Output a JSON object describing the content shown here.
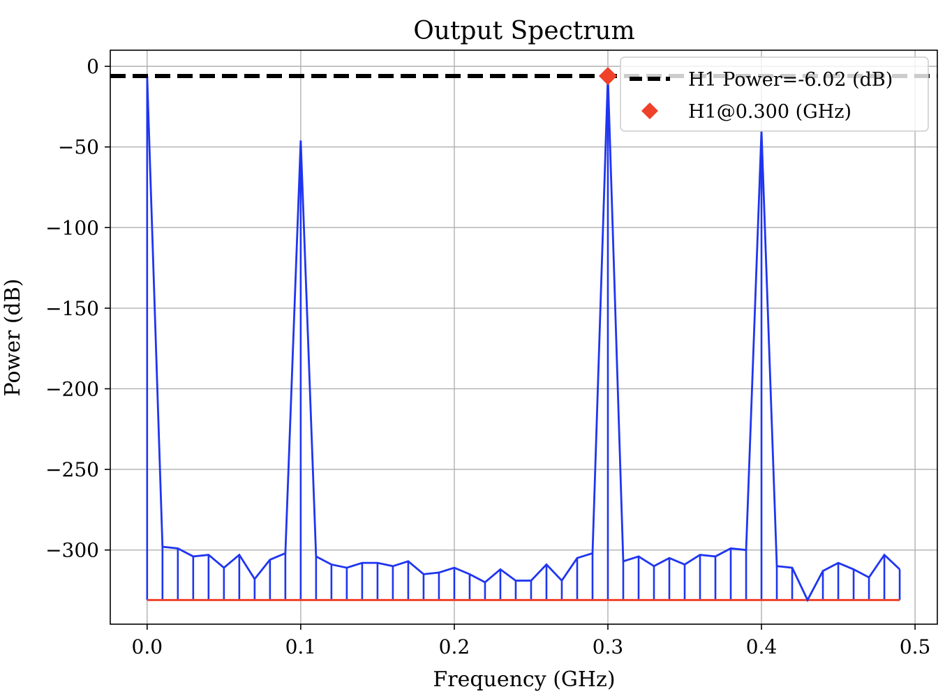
{
  "chart_data": {
    "type": "line",
    "title": "Output Spectrum",
    "xlabel": "Frequency (GHz)",
    "ylabel": "Power (dB)",
    "xlim": [
      -0.024,
      0.5145
    ],
    "ylim": [
      -346,
      10
    ],
    "xticks": [
      0.0,
      0.1,
      0.2,
      0.3,
      0.4,
      0.5
    ],
    "xtick_labels": [
      "0.0",
      "0.1",
      "0.2",
      "0.3",
      "0.4",
      "0.5"
    ],
    "yticks": [
      0,
      -50,
      -100,
      -150,
      -200,
      -250,
      -300
    ],
    "ytick_labels": [
      "0",
      "−50",
      "−100",
      "−150",
      "−200",
      "−250",
      "−300"
    ],
    "grid": true,
    "legend_position": "top-right",
    "stem_baseline": -331,
    "spectrum": {
      "color": "#1f35f0",
      "x": [
        0.0,
        0.01,
        0.02,
        0.03,
        0.04,
        0.05,
        0.06,
        0.07,
        0.08,
        0.09,
        0.1,
        0.11,
        0.12,
        0.13,
        0.14,
        0.15,
        0.16,
        0.17,
        0.18,
        0.19,
        0.2,
        0.21,
        0.22,
        0.23,
        0.24,
        0.25,
        0.26,
        0.27,
        0.28,
        0.29,
        0.3,
        0.31,
        0.32,
        0.33,
        0.34,
        0.35,
        0.36,
        0.37,
        0.38,
        0.39,
        0.4,
        0.41,
        0.42,
        0.43,
        0.44,
        0.45,
        0.46,
        0.47,
        0.48,
        0.49
      ],
      "y": [
        -6.02,
        -298,
        -299,
        -304,
        -303,
        -311,
        -303,
        -318,
        -306,
        -302,
        -46,
        -304,
        -309,
        -311,
        -308,
        -308,
        -310,
        -307,
        -315,
        -314,
        -311,
        -315,
        -320,
        -312,
        -319,
        -319,
        -309,
        -319,
        -305,
        -302,
        -6.02,
        -307,
        -304,
        -310,
        -305,
        -309,
        -303,
        -304,
        -299,
        -300,
        -40,
        -310,
        -311,
        -331,
        -313,
        -308,
        -312,
        -317,
        -303,
        -312
      ]
    },
    "h1_power": {
      "name": "H1 Power=-6.02 (dB)",
      "value": -6.02,
      "color": "#000000"
    },
    "h1_marker": {
      "name": "H1@0.300 (GHz)",
      "x": 0.3,
      "y": -6.02,
      "color": "#f0412a"
    },
    "baseline_color": "#f0412a"
  }
}
